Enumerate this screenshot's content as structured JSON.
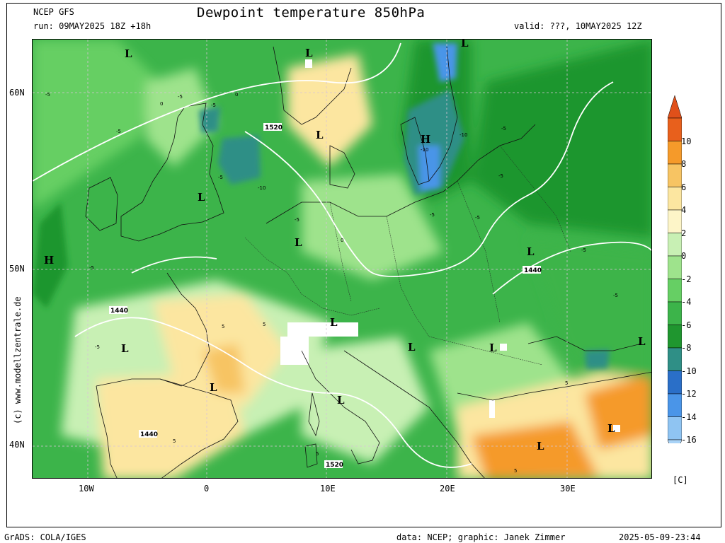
{
  "header": {
    "model": "NCEP GFS",
    "run": "run: 09MAY2025 18Z +18h",
    "title": "Dewpoint temperature 850hPa",
    "valid": "valid: ???, 10MAY2025 12Z"
  },
  "footer": {
    "grads": "GrADS: COLA/IGES",
    "credits": "data: NCEP; graphic: Janek Zimmer",
    "timestamp": "2025-05-09-23:44"
  },
  "copyright": "(c) www.modellzentrale.de",
  "axes": {
    "lat_labels": [
      "60N",
      "50N",
      "40N"
    ],
    "lon_labels": [
      "10W",
      "0",
      "10E",
      "20E",
      "30E"
    ]
  },
  "colorbar": {
    "unit": "[C]",
    "labels": [
      "10",
      "8",
      "6",
      "4",
      "2",
      "0",
      "-2",
      "-4",
      "-6",
      "-8",
      "-10",
      "-12",
      "-14",
      "-16"
    ],
    "colors": [
      "#e8601c",
      "#f59a2a",
      "#f7c463",
      "#fce6a0",
      "#fdf5c8",
      "#c8f0b4",
      "#9ee38c",
      "#66cf64",
      "#3cb44a",
      "#1f962f",
      "#2f8f86",
      "#2a6fc8",
      "#4a95e8",
      "#8fc4f2"
    ]
  },
  "map_labels": {
    "pressure_systems": [
      "L",
      "L",
      "L",
      "L",
      "L",
      "L",
      "L",
      "L",
      "L",
      "L",
      "L",
      "L",
      "L",
      "L",
      "L",
      "H",
      "H",
      "L"
    ],
    "geopotential": [
      "1520",
      "1440",
      "1440",
      "1440",
      "1520"
    ],
    "contour_values": [
      "-5",
      "-5",
      "-5",
      "0",
      "-5",
      "0",
      "-5",
      "-5",
      "-10",
      "-10",
      "-10",
      "-5",
      "-5",
      "-5",
      "-5",
      "-5",
      "-5",
      "-5",
      "-5",
      "0",
      "5",
      "5",
      "5",
      "5",
      "5",
      "5"
    ]
  }
}
